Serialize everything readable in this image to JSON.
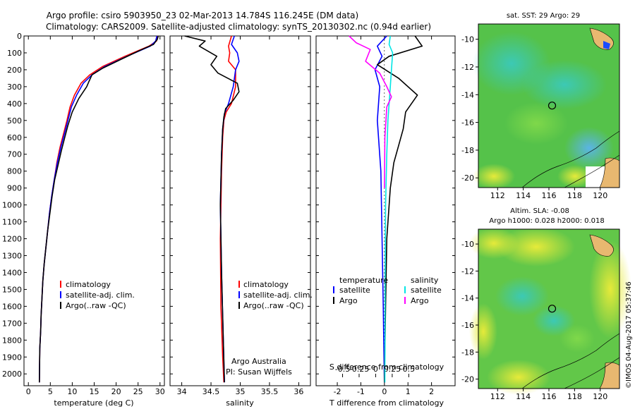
{
  "header": {
    "line1": "Argo profile: csiro 5903950_23 02-Mar-2013 14.784S 116.245E (DM data)",
    "line2": "Climatology: CARS2009. Satellite-adjusted climatology: synTS_20130302.nc (0.94d earlier)"
  },
  "colors": {
    "clim": "#ff0000",
    "sat": "#0000ff",
    "argo": "#000000",
    "sal_sat": "#00e5e5",
    "sal_argo": "#ff00ff"
  },
  "chart_data": [
    {
      "type": "line",
      "id": "temperature",
      "xlabel": "temperature (deg C)",
      "ylabel": "",
      "xlim": [
        -1,
        31
      ],
      "ylim": [
        2070,
        0
      ],
      "xticks": [
        0,
        5,
        10,
        15,
        20,
        25,
        30
      ],
      "yticks": [
        0,
        100,
        200,
        300,
        400,
        500,
        600,
        700,
        800,
        900,
        1000,
        1100,
        1200,
        1300,
        1400,
        1500,
        1600,
        1700,
        1800,
        1900,
        2000
      ],
      "legend": [
        "climatology",
        "satellite-adj. clim.",
        "Argo(..raw -QC)"
      ],
      "series": [
        {
          "name": "climatology",
          "color": "clim",
          "x": [
            29.5,
            29.2,
            27.5,
            22,
            17,
            14,
            12,
            10.5,
            9.5,
            8.8,
            8,
            7.2,
            6.5,
            5.9,
            5.3,
            4.8,
            4.4,
            4,
            3.6,
            3.3,
            3.1,
            2.9,
            2.8,
            2.6,
            2.5
          ],
          "y": [
            0,
            30,
            60,
            120,
            180,
            230,
            280,
            350,
            420,
            500,
            580,
            660,
            750,
            850,
            950,
            1050,
            1150,
            1250,
            1350,
            1450,
            1550,
            1650,
            1750,
            1850,
            2050
          ]
        },
        {
          "name": "satellite-adj. clim.",
          "color": "sat",
          "x": [
            29.3,
            29,
            27.8,
            22.5,
            17.5,
            14.5,
            12.5,
            11,
            9.8,
            9,
            8.2,
            7.4,
            6.6,
            5.9,
            5.3,
            4.8,
            4.4,
            4,
            3.6,
            3.3,
            3.1,
            2.9,
            2.8,
            2.6,
            2.5
          ],
          "y": [
            0,
            30,
            60,
            120,
            180,
            230,
            280,
            350,
            420,
            500,
            580,
            660,
            750,
            850,
            950,
            1050,
            1150,
            1250,
            1350,
            1450,
            1550,
            1650,
            1750,
            1850,
            2050
          ]
        },
        {
          "name": "Argo",
          "color": "argo",
          "x": [
            29.6,
            29.4,
            28.5,
            25,
            21,
            17,
            14.5,
            13.8,
            13.3,
            11.5,
            10,
            9,
            8.3,
            7.5,
            6.8,
            6,
            5.4,
            4.9,
            4.4,
            4,
            3.6,
            3.3,
            3.1,
            2.9,
            2.8,
            2.6,
            2.5
          ],
          "y": [
            0,
            20,
            50,
            90,
            140,
            190,
            230,
            270,
            300,
            370,
            450,
            530,
            600,
            680,
            760,
            850,
            950,
            1050,
            1150,
            1250,
            1350,
            1450,
            1550,
            1650,
            1750,
            1850,
            2050
          ]
        }
      ]
    },
    {
      "type": "line",
      "id": "salinity",
      "xlabel": "salinity",
      "xlim": [
        33.8,
        36.2
      ],
      "ylim": [
        2070,
        0
      ],
      "xticks": [
        34,
        34.5,
        35,
        35.5,
        36
      ],
      "legend": [
        "climatology",
        "satellite-adj. clim.",
        "Argo(..raw -QC)"
      ],
      "annotation": [
        "Argo Australia",
        "PI: Susan Wijffels"
      ],
      "series": [
        {
          "name": "climatology",
          "color": "clim",
          "x": [
            34.85,
            34.8,
            34.82,
            34.8,
            34.92,
            34.92,
            34.85,
            34.76,
            34.72,
            34.7,
            34.68,
            34.66,
            34.67,
            34.7,
            34.72
          ],
          "y": [
            0,
            60,
            100,
            150,
            200,
            300,
            400,
            450,
            500,
            600,
            800,
            1200,
            1600,
            1900,
            2050
          ]
        },
        {
          "name": "satellite-adj. clim.",
          "color": "sat",
          "x": [
            34.9,
            34.85,
            34.95,
            34.98,
            34.92,
            34.88,
            34.8,
            34.73,
            34.7,
            34.68,
            34.66,
            34.68,
            34.71,
            34.73
          ],
          "y": [
            0,
            50,
            100,
            150,
            200,
            300,
            400,
            460,
            550,
            700,
            1000,
            1400,
            1800,
            2050
          ]
        },
        {
          "name": "Argo",
          "color": "argo",
          "x": [
            34.05,
            34.4,
            34.3,
            34.6,
            34.5,
            34.62,
            34.95,
            34.98,
            34.88,
            34.75,
            34.72,
            34.7,
            34.68,
            34.66,
            34.68,
            34.71,
            34.73
          ],
          "y": [
            0,
            30,
            60,
            120,
            170,
            220,
            280,
            330,
            380,
            430,
            480,
            550,
            700,
            1000,
            1400,
            1800,
            2050
          ]
        }
      ]
    },
    {
      "type": "line",
      "id": "differences",
      "xlabel": "T difference from climatology",
      "xlabel_top": "S difference from climatology",
      "xlim": [
        -2.9,
        3
      ],
      "ylim": [
        2070,
        0
      ],
      "xticks": [
        -2,
        -1,
        0,
        1,
        2
      ],
      "xtick_labels": [
        "-2",
        "-1",
        "0",
        "1",
        "2"
      ],
      "sticks": [
        -0.5,
        -0.25,
        0,
        0.25,
        0.5
      ],
      "stick_labels": [
        "-0.5",
        "-0.25",
        "0",
        "0.25",
        "0.5"
      ],
      "legend_temp": {
        "title": "temperature",
        "items": [
          "satellite",
          "Argo"
        ]
      },
      "legend_sal": {
        "title": "salinity",
        "items": [
          "satellite",
          "Argo"
        ]
      },
      "series": [
        {
          "name": "T satellite",
          "color": "sat",
          "x": [
            0.1,
            -0.3,
            -0.1,
            -0.4,
            -0.2,
            -0.3,
            -0.15,
            -0.1,
            -0.05,
            0
          ],
          "y": [
            0,
            60,
            120,
            200,
            300,
            500,
            800,
            1200,
            1600,
            2050
          ]
        },
        {
          "name": "T Argo",
          "color": "argo",
          "x": [
            1.3,
            1.6,
            0.2,
            -0.3,
            0.6,
            1.4,
            0.9,
            0.8,
            0.6,
            0.4,
            0.25,
            0.1,
            0.05,
            0
          ],
          "y": [
            0,
            60,
            120,
            170,
            250,
            350,
            450,
            550,
            650,
            750,
            900,
            1200,
            1600,
            2050
          ]
        },
        {
          "name": "S satellite",
          "color": "sal_sat",
          "x": [
            0.25,
            0.2,
            0.35,
            0.3,
            0.25,
            0.2,
            0.15,
            0.1,
            0.05,
            0.03,
            0.02
          ],
          "y": [
            0,
            50,
            100,
            200,
            300,
            400,
            500,
            700,
            1000,
            1500,
            2050
          ]
        },
        {
          "name": "S Argo",
          "color": "sal_argo",
          "x": [
            -1.5,
            -1.2,
            -0.6,
            -0.8,
            -0.2,
            0.1,
            0.3,
            0.1,
            0.02,
            0
          ],
          "y": [
            0,
            40,
            80,
            150,
            220,
            300,
            360,
            420,
            600,
            900
          ]
        }
      ]
    },
    {
      "type": "heatmap",
      "id": "sst-map",
      "title": "sat. SST: 29 Argo: 29",
      "xlim": [
        110.5,
        121.5
      ],
      "ylim": [
        -20.7,
        -8.9
      ],
      "xticks": [
        112,
        114,
        116,
        118,
        120
      ],
      "yticks": [
        -10,
        -12,
        -14,
        -16,
        -18,
        -20
      ],
      "marker": [
        116.245,
        -14.784
      ]
    },
    {
      "type": "heatmap",
      "id": "sla-map",
      "title": "Altim. SLA: -0.08",
      "subtitle": "Argo h1000: 0.028 h2000: 0.018",
      "xlim": [
        110.5,
        121.5
      ],
      "ylim": [
        -20.7,
        -8.9
      ],
      "xticks": [
        112,
        114,
        116,
        118,
        120
      ],
      "yticks": [
        -10,
        -12,
        -14,
        -16,
        -18,
        -20
      ],
      "marker": [
        116.245,
        -14.784
      ]
    }
  ],
  "footer": {
    "stamp": "©IMOS 04-Aug-2017 05:37:46"
  }
}
